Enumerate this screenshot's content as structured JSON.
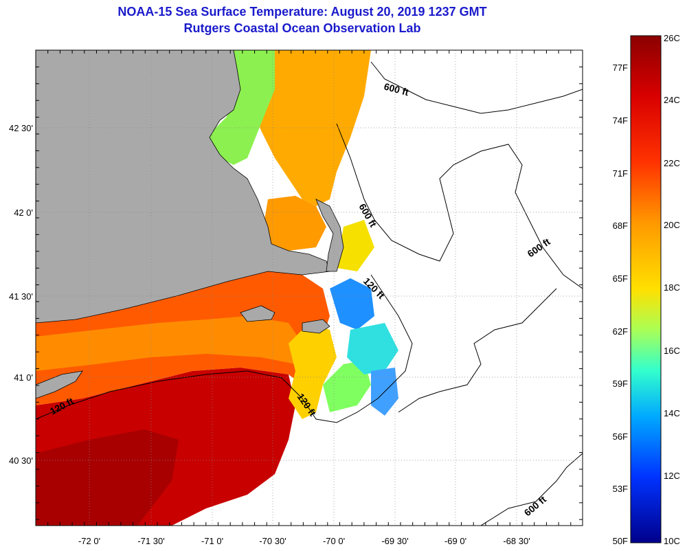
{
  "title": "NOAA-15 Sea Surface Temperature:  August 20, 2019 1237 GMT",
  "subtitle": "Rutgers Coastal Ocean Observation Lab",
  "map": {
    "lon_ticks": [
      "-72 0'",
      "-71 30'",
      "-71 0'",
      "-70 30'",
      "-70 0'",
      "-69 30'",
      "-69 0'",
      "-68 30'"
    ],
    "lat_ticks": [
      "42 30'",
      "42 0'",
      "41 30'",
      "41 0'",
      "40 30'"
    ],
    "contour_labels": [
      "600 ft",
      "600 ft",
      "600 ft",
      "600 ft",
      "120 ft",
      "120 ft",
      "120 ft"
    ],
    "colors": {
      "land": "#a9a9a9",
      "no_data": "#ffffff",
      "grid": "#888888"
    }
  },
  "colorbar": {
    "celsius": [
      "26C",
      "24C",
      "22C",
      "20C",
      "18C",
      "16C",
      "14C",
      "12C",
      "10C"
    ],
    "fahrenheit": [
      "77F",
      "74F",
      "71F",
      "68F",
      "65F",
      "62F",
      "59F",
      "56F",
      "53F",
      "50F"
    ],
    "stops": [
      "#8b0000",
      "#d90000",
      "#ff3300",
      "#ff9900",
      "#ffe000",
      "#aaff55",
      "#33ffcc",
      "#00aaff",
      "#0033ff",
      "#00008b"
    ]
  }
}
